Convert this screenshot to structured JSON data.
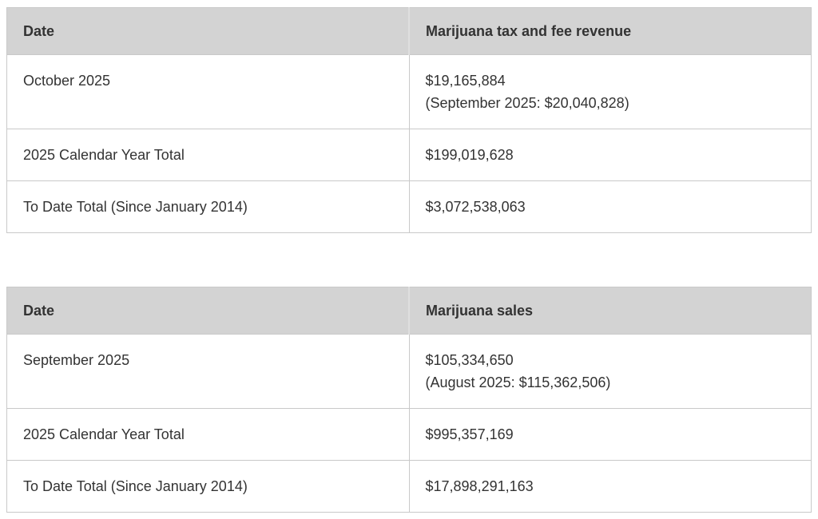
{
  "tables": [
    {
      "id": "tax-and-fee-revenue",
      "headers": {
        "date": "Date",
        "value": "Marijuana tax and fee revenue"
      },
      "rows": [
        {
          "label": "October 2025",
          "value": "$19,165,884",
          "note": "(September 2025: $20,040,828)"
        },
        {
          "label": "2025 Calendar Year Total",
          "value": "$199,019,628"
        },
        {
          "label": "To Date Total (Since January 2014)",
          "value": "$3,072,538,063"
        }
      ]
    },
    {
      "id": "sales",
      "headers": {
        "date": "Date",
        "value": "Marijuana sales"
      },
      "rows": [
        {
          "label": "September 2025",
          "value": "$105,334,650",
          "note": "(August 2025: $115,362,506)"
        },
        {
          "label": "2025 Calendar Year Total",
          "value": "$995,357,169"
        },
        {
          "label": "To Date Total (Since January 2014)",
          "value": "$17,898,291,163"
        }
      ]
    }
  ],
  "colors": {
    "header_bg": "#d3d3d3",
    "header_divider": "#dfdfdf",
    "border": "#c9c9c9",
    "text": "#333333",
    "background": "#ffffff"
  }
}
